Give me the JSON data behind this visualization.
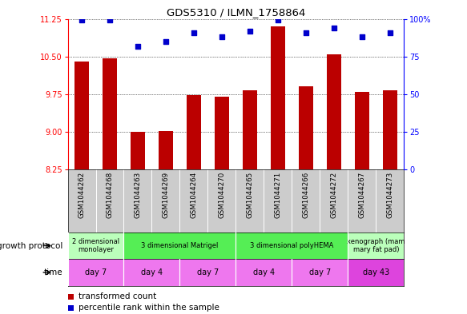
{
  "title": "GDS5310 / ILMN_1758864",
  "samples": [
    "GSM1044262",
    "GSM1044268",
    "GSM1044263",
    "GSM1044269",
    "GSM1044264",
    "GSM1044270",
    "GSM1044265",
    "GSM1044271",
    "GSM1044266",
    "GSM1044272",
    "GSM1044267",
    "GSM1044273"
  ],
  "bar_values": [
    10.4,
    10.46,
    9.0,
    9.02,
    9.74,
    9.7,
    9.83,
    11.1,
    9.9,
    10.55,
    9.79,
    9.82
  ],
  "dot_values": [
    99,
    99,
    82,
    85,
    91,
    88,
    92,
    99,
    91,
    94,
    88,
    91
  ],
  "y_min": 8.25,
  "y_max": 11.25,
  "y_ticks": [
    8.25,
    9.0,
    9.75,
    10.5,
    11.25
  ],
  "y2_ticks": [
    0,
    25,
    50,
    75,
    100
  ],
  "bar_color": "#bb0000",
  "dot_color": "#0000cc",
  "grid_color": "#888888",
  "gp_groups": [
    {
      "label": "2 dimensional\nmonolayer",
      "color": "#bbffbb",
      "start": 0,
      "end": 2
    },
    {
      "label": "3 dimensional Matrigel",
      "color": "#55ee55",
      "start": 2,
      "end": 6
    },
    {
      "label": "3 dimensional polyHEMA",
      "color": "#55ee55",
      "start": 6,
      "end": 10
    },
    {
      "label": "xenograph (mam\nmary fat pad)",
      "color": "#bbffbb",
      "start": 10,
      "end": 12
    }
  ],
  "time_groups": [
    {
      "label": "day 7",
      "color": "#ee77ee",
      "start": 0,
      "end": 2
    },
    {
      "label": "day 4",
      "color": "#ee77ee",
      "start": 2,
      "end": 4
    },
    {
      "label": "day 7",
      "color": "#ee77ee",
      "start": 4,
      "end": 6
    },
    {
      "label": "day 4",
      "color": "#ee77ee",
      "start": 6,
      "end": 8
    },
    {
      "label": "day 7",
      "color": "#ee77ee",
      "start": 8,
      "end": 10
    },
    {
      "label": "day 43",
      "color": "#dd44dd",
      "start": 10,
      "end": 12
    }
  ],
  "growth_protocol_label": "growth protocol",
  "time_label": "time",
  "legend_bar_label": "transformed count",
  "legend_dot_label": "percentile rank within the sample",
  "xlab_bg": "#cccccc",
  "bg_color": "#ffffff"
}
